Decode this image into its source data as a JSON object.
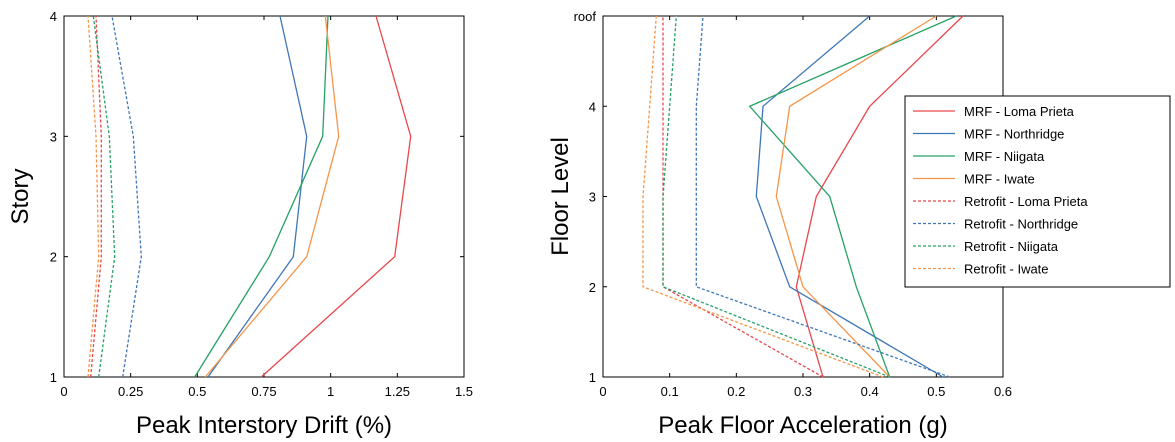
{
  "chart_data": [
    {
      "type": "line",
      "orientation": "profile",
      "xlabel": "Peak Interstory Drift (%)",
      "ylabel": "Story",
      "xlim": [
        0,
        1.5
      ],
      "ylim": [
        1,
        4
      ],
      "x_ticks": [
        "0",
        "0.25",
        "0.5",
        "0.75",
        "1",
        "1.25",
        "1.5"
      ],
      "y_ticks": [
        "1",
        "2",
        "3",
        "4"
      ],
      "legend": "none",
      "grid": false,
      "series": [
        {
          "name": "MRF - Loma Prieta",
          "color": "#e8474b",
          "dash": "solid",
          "x": [
            0.74,
            1.24,
            1.3,
            1.17
          ],
          "y": [
            1,
            2,
            3,
            4
          ]
        },
        {
          "name": "MRF - Northridge",
          "color": "#3f76b7",
          "dash": "solid",
          "x": [
            0.54,
            0.86,
            0.91,
            0.81
          ],
          "y": [
            1,
            2,
            3,
            4
          ]
        },
        {
          "name": "MRF - Niigata",
          "color": "#26a065",
          "dash": "solid",
          "x": [
            0.49,
            0.77,
            0.97,
            0.99
          ],
          "y": [
            1,
            2,
            3,
            4
          ]
        },
        {
          "name": "MRF - Iwate",
          "color": "#f5954a",
          "dash": "solid",
          "x": [
            0.53,
            0.91,
            1.03,
            0.98
          ],
          "y": [
            1,
            2,
            3,
            4
          ]
        },
        {
          "name": "Retrofit - Loma Prieta",
          "color": "#e8474b",
          "dash": "dashed",
          "x": [
            0.1,
            0.14,
            0.14,
            0.12
          ],
          "y": [
            1,
            2,
            3,
            4
          ]
        },
        {
          "name": "Retrofit - Northridge",
          "color": "#3f76b7",
          "dash": "dashed",
          "x": [
            0.22,
            0.29,
            0.26,
            0.18
          ],
          "y": [
            1,
            2,
            3,
            4
          ]
        },
        {
          "name": "Retrofit - Niigata",
          "color": "#26a065",
          "dash": "dashed",
          "x": [
            0.13,
            0.19,
            0.17,
            0.11
          ],
          "y": [
            1,
            2,
            3,
            4
          ]
        },
        {
          "name": "Retrofit - Iwate",
          "color": "#f5954a",
          "dash": "dashed",
          "x": [
            0.09,
            0.13,
            0.12,
            0.09
          ],
          "y": [
            1,
            2,
            3,
            4
          ]
        }
      ]
    },
    {
      "type": "line",
      "orientation": "profile",
      "xlabel": "Peak Floor Acceleration (g)",
      "ylabel": "Floor Level",
      "xlim": [
        0,
        0.6
      ],
      "ylim": [
        1,
        5
      ],
      "x_ticks": [
        "0",
        "0.1",
        "0.2",
        "0.3",
        "0.4",
        "0.5",
        "0.6"
      ],
      "y_ticks": [
        "1",
        "2",
        "3",
        "4",
        "roof"
      ],
      "legend": "right",
      "grid": false,
      "series": [
        {
          "name": "MRF - Loma Prieta",
          "color": "#e8474b",
          "dash": "solid",
          "x": [
            0.33,
            0.29,
            0.32,
            0.4,
            0.54
          ],
          "y": [
            1,
            2,
            3,
            4,
            5
          ]
        },
        {
          "name": "MRF - Northridge",
          "color": "#3f76b7",
          "dash": "solid",
          "x": [
            0.51,
            0.28,
            0.23,
            0.24,
            0.4
          ],
          "y": [
            1,
            2,
            3,
            4,
            5
          ]
        },
        {
          "name": "MRF - Niigata",
          "color": "#26a065",
          "dash": "solid",
          "x": [
            0.43,
            0.38,
            0.34,
            0.22,
            0.53
          ],
          "y": [
            1,
            2,
            3,
            4,
            5
          ]
        },
        {
          "name": "MRF - Iwate",
          "color": "#f5954a",
          "dash": "solid",
          "x": [
            0.43,
            0.3,
            0.26,
            0.28,
            0.5
          ],
          "y": [
            1,
            2,
            3,
            4,
            5
          ]
        },
        {
          "name": "Retrofit - Loma Prieta",
          "color": "#e8474b",
          "dash": "dashed",
          "x": [
            0.33,
            0.09,
            0.09,
            0.09,
            0.09
          ],
          "y": [
            1,
            2,
            3,
            4,
            5
          ]
        },
        {
          "name": "Retrofit - Northridge",
          "color": "#3f76b7",
          "dash": "dashed",
          "x": [
            0.52,
            0.14,
            0.14,
            0.14,
            0.15
          ],
          "y": [
            1,
            2,
            3,
            4,
            5
          ]
        },
        {
          "name": "Retrofit - Niigata",
          "color": "#26a065",
          "dash": "dashed",
          "x": [
            0.43,
            0.09,
            0.09,
            0.1,
            0.11
          ],
          "y": [
            1,
            2,
            3,
            4,
            5
          ]
        },
        {
          "name": "Retrofit - Iwate",
          "color": "#f5954a",
          "dash": "dashed",
          "x": [
            0.42,
            0.06,
            0.06,
            0.07,
            0.08
          ],
          "y": [
            1,
            2,
            3,
            4,
            5
          ]
        }
      ]
    }
  ]
}
